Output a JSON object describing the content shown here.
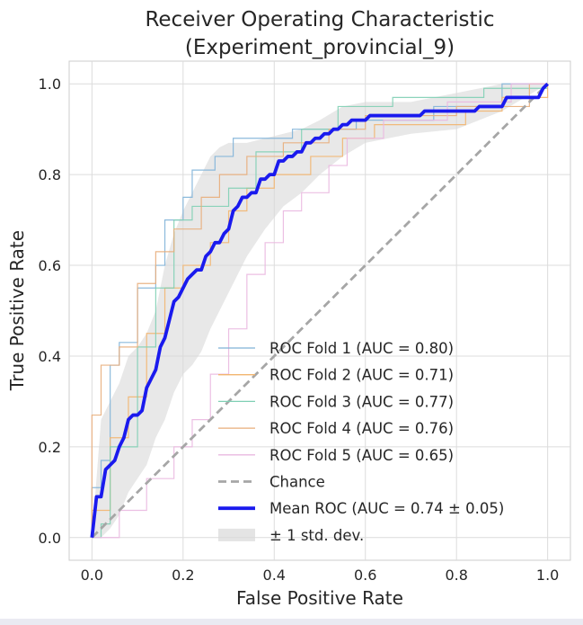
{
  "chart_data": {
    "type": "line",
    "title": [
      "Receiver Operating Characteristic",
      "(Experiment_provincial_9)"
    ],
    "xlabel": "False Positive Rate",
    "ylabel": "True Positive Rate",
    "xlim": [
      -0.05,
      1.05
    ],
    "ylim": [
      -0.05,
      1.05
    ],
    "xticks": [
      0.0,
      0.2,
      0.4,
      0.6,
      0.8,
      1.0
    ],
    "yticks": [
      0.0,
      0.2,
      0.4,
      0.6,
      0.8,
      1.0
    ],
    "xtick_labels": [
      "0.0",
      "0.2",
      "0.4",
      "0.6",
      "0.8",
      "1.0"
    ],
    "ytick_labels": [
      "0.0",
      "0.2",
      "0.4",
      "0.6",
      "0.8",
      "1.0"
    ],
    "grid": true,
    "legend_position": "bottom-right",
    "series": [
      {
        "name": "ROC Fold 1 (AUC = 0.80)",
        "color": "#7fb2d8",
        "points": [
          [
            0,
            0
          ],
          [
            0,
            0.11
          ],
          [
            0.02,
            0.11
          ],
          [
            0.02,
            0.17
          ],
          [
            0.04,
            0.17
          ],
          [
            0.04,
            0.38
          ],
          [
            0.06,
            0.38
          ],
          [
            0.06,
            0.43
          ],
          [
            0.1,
            0.43
          ],
          [
            0.1,
            0.55
          ],
          [
            0.14,
            0.55
          ],
          [
            0.14,
            0.6
          ],
          [
            0.16,
            0.6
          ],
          [
            0.16,
            0.7
          ],
          [
            0.2,
            0.7
          ],
          [
            0.2,
            0.75
          ],
          [
            0.22,
            0.75
          ],
          [
            0.22,
            0.81
          ],
          [
            0.27,
            0.81
          ],
          [
            0.27,
            0.84
          ],
          [
            0.31,
            0.84
          ],
          [
            0.31,
            0.88
          ],
          [
            0.44,
            0.88
          ],
          [
            0.44,
            0.9
          ],
          [
            0.58,
            0.9
          ],
          [
            0.58,
            0.92
          ],
          [
            0.75,
            0.92
          ],
          [
            0.75,
            0.95
          ],
          [
            0.9,
            0.95
          ],
          [
            0.9,
            1.0
          ],
          [
            1.0,
            1.0
          ]
        ]
      },
      {
        "name": "ROC Fold 2 (AUC = 0.71)",
        "color": "#f2b56f",
        "points": [
          [
            0,
            0
          ],
          [
            0,
            0.06
          ],
          [
            0.04,
            0.06
          ],
          [
            0.04,
            0.22
          ],
          [
            0.08,
            0.22
          ],
          [
            0.08,
            0.31
          ],
          [
            0.12,
            0.31
          ],
          [
            0.12,
            0.45
          ],
          [
            0.16,
            0.45
          ],
          [
            0.16,
            0.55
          ],
          [
            0.2,
            0.55
          ],
          [
            0.2,
            0.6
          ],
          [
            0.26,
            0.6
          ],
          [
            0.26,
            0.65
          ],
          [
            0.3,
            0.65
          ],
          [
            0.3,
            0.72
          ],
          [
            0.34,
            0.72
          ],
          [
            0.34,
            0.77
          ],
          [
            0.4,
            0.77
          ],
          [
            0.4,
            0.8
          ],
          [
            0.48,
            0.8
          ],
          [
            0.48,
            0.84
          ],
          [
            0.55,
            0.84
          ],
          [
            0.55,
            0.88
          ],
          [
            0.62,
            0.88
          ],
          [
            0.62,
            0.91
          ],
          [
            0.82,
            0.91
          ],
          [
            0.82,
            0.94
          ],
          [
            0.9,
            0.94
          ],
          [
            0.9,
            0.97
          ],
          [
            1.0,
            0.97
          ],
          [
            1.0,
            1.0
          ]
        ]
      },
      {
        "name": "ROC Fold 3 (AUC = 0.77)",
        "color": "#7fcfb4",
        "points": [
          [
            0,
            0
          ],
          [
            0.02,
            0
          ],
          [
            0.02,
            0.03
          ],
          [
            0.04,
            0.03
          ],
          [
            0.04,
            0.2
          ],
          [
            0.1,
            0.2
          ],
          [
            0.1,
            0.42
          ],
          [
            0.14,
            0.42
          ],
          [
            0.14,
            0.55
          ],
          [
            0.18,
            0.55
          ],
          [
            0.18,
            0.7
          ],
          [
            0.22,
            0.7
          ],
          [
            0.22,
            0.73
          ],
          [
            0.3,
            0.73
          ],
          [
            0.3,
            0.77
          ],
          [
            0.36,
            0.77
          ],
          [
            0.36,
            0.85
          ],
          [
            0.46,
            0.85
          ],
          [
            0.46,
            0.9
          ],
          [
            0.54,
            0.9
          ],
          [
            0.54,
            0.95
          ],
          [
            0.66,
            0.95
          ],
          [
            0.66,
            0.97
          ],
          [
            0.86,
            0.97
          ],
          [
            0.86,
            0.99
          ],
          [
            1.0,
            0.99
          ]
        ]
      },
      {
        "name": "ROC Fold 4 (AUC = 0.76)",
        "color": "#e8ad7a",
        "points": [
          [
            0,
            0
          ],
          [
            0,
            0.27
          ],
          [
            0.02,
            0.27
          ],
          [
            0.02,
            0.38
          ],
          [
            0.06,
            0.38
          ],
          [
            0.06,
            0.42
          ],
          [
            0.1,
            0.42
          ],
          [
            0.1,
            0.56
          ],
          [
            0.14,
            0.56
          ],
          [
            0.14,
            0.63
          ],
          [
            0.18,
            0.63
          ],
          [
            0.18,
            0.68
          ],
          [
            0.24,
            0.68
          ],
          [
            0.24,
            0.75
          ],
          [
            0.28,
            0.75
          ],
          [
            0.28,
            0.8
          ],
          [
            0.34,
            0.8
          ],
          [
            0.34,
            0.84
          ],
          [
            0.42,
            0.84
          ],
          [
            0.42,
            0.87
          ],
          [
            0.52,
            0.87
          ],
          [
            0.52,
            0.9
          ],
          [
            0.6,
            0.9
          ],
          [
            0.6,
            0.93
          ],
          [
            0.8,
            0.93
          ],
          [
            0.8,
            0.95
          ],
          [
            0.96,
            0.95
          ],
          [
            0.96,
            1.0
          ],
          [
            1.0,
            1.0
          ]
        ]
      },
      {
        "name": "ROC Fold 5 (AUC = 0.65)",
        "color": "#eab8e0",
        "points": [
          [
            0,
            0
          ],
          [
            0.06,
            0
          ],
          [
            0.06,
            0.06
          ],
          [
            0.12,
            0.06
          ],
          [
            0.12,
            0.13
          ],
          [
            0.18,
            0.13
          ],
          [
            0.18,
            0.2
          ],
          [
            0.22,
            0.2
          ],
          [
            0.22,
            0.26
          ],
          [
            0.26,
            0.26
          ],
          [
            0.26,
            0.36
          ],
          [
            0.3,
            0.36
          ],
          [
            0.3,
            0.46
          ],
          [
            0.34,
            0.46
          ],
          [
            0.34,
            0.58
          ],
          [
            0.38,
            0.58
          ],
          [
            0.38,
            0.65
          ],
          [
            0.42,
            0.65
          ],
          [
            0.42,
            0.72
          ],
          [
            0.46,
            0.72
          ],
          [
            0.46,
            0.76
          ],
          [
            0.52,
            0.76
          ],
          [
            0.52,
            0.82
          ],
          [
            0.56,
            0.82
          ],
          [
            0.56,
            0.88
          ],
          [
            0.64,
            0.88
          ],
          [
            0.64,
            0.92
          ],
          [
            0.78,
            0.92
          ],
          [
            0.78,
            0.96
          ],
          [
            0.92,
            0.96
          ],
          [
            0.92,
            1.0
          ],
          [
            1.0,
            1.0
          ]
        ]
      },
      {
        "name": "Chance",
        "color": "#a6a6a6",
        "dashed": true,
        "points": [
          [
            0,
            0
          ],
          [
            1,
            1
          ]
        ]
      },
      {
        "name": "Mean ROC (AUC = 0.74 ± 0.05)",
        "color": "#1a1aee",
        "points": [
          [
            0,
            0
          ],
          [
            0.01,
            0.09
          ],
          [
            0.02,
            0.09
          ],
          [
            0.025,
            0.12
          ],
          [
            0.03,
            0.15
          ],
          [
            0.04,
            0.16
          ],
          [
            0.05,
            0.17
          ],
          [
            0.06,
            0.2
          ],
          [
            0.07,
            0.22
          ],
          [
            0.08,
            0.26
          ],
          [
            0.09,
            0.27
          ],
          [
            0.1,
            0.27
          ],
          [
            0.11,
            0.28
          ],
          [
            0.12,
            0.33
          ],
          [
            0.13,
            0.35
          ],
          [
            0.14,
            0.37
          ],
          [
            0.15,
            0.42
          ],
          [
            0.16,
            0.44
          ],
          [
            0.17,
            0.48
          ],
          [
            0.18,
            0.52
          ],
          [
            0.19,
            0.53
          ],
          [
            0.2,
            0.55
          ],
          [
            0.21,
            0.57
          ],
          [
            0.22,
            0.58
          ],
          [
            0.23,
            0.59
          ],
          [
            0.24,
            0.59
          ],
          [
            0.25,
            0.62
          ],
          [
            0.26,
            0.63
          ],
          [
            0.27,
            0.65
          ],
          [
            0.28,
            0.65
          ],
          [
            0.29,
            0.67
          ],
          [
            0.3,
            0.68
          ],
          [
            0.31,
            0.72
          ],
          [
            0.32,
            0.73
          ],
          [
            0.33,
            0.75
          ],
          [
            0.34,
            0.75
          ],
          [
            0.35,
            0.76
          ],
          [
            0.36,
            0.76
          ],
          [
            0.37,
            0.79
          ],
          [
            0.38,
            0.79
          ],
          [
            0.39,
            0.8
          ],
          [
            0.4,
            0.8
          ],
          [
            0.41,
            0.83
          ],
          [
            0.42,
            0.83
          ],
          [
            0.43,
            0.84
          ],
          [
            0.44,
            0.84
          ],
          [
            0.45,
            0.85
          ],
          [
            0.46,
            0.85
          ],
          [
            0.47,
            0.87
          ],
          [
            0.48,
            0.87
          ],
          [
            0.49,
            0.88
          ],
          [
            0.5,
            0.88
          ],
          [
            0.51,
            0.89
          ],
          [
            0.52,
            0.89
          ],
          [
            0.53,
            0.9
          ],
          [
            0.54,
            0.9
          ],
          [
            0.55,
            0.91
          ],
          [
            0.56,
            0.91
          ],
          [
            0.57,
            0.92
          ],
          [
            0.6,
            0.92
          ],
          [
            0.61,
            0.93
          ],
          [
            0.72,
            0.93
          ],
          [
            0.73,
            0.94
          ],
          [
            0.84,
            0.94
          ],
          [
            0.85,
            0.95
          ],
          [
            0.9,
            0.95
          ],
          [
            0.91,
            0.97
          ],
          [
            0.98,
            0.97
          ],
          [
            0.99,
            0.99
          ],
          [
            1.0,
            1.0
          ]
        ]
      }
    ],
    "band": {
      "name": "± 1 std. dev.",
      "color": "#d9d9d9",
      "x": [
        0.0,
        0.02,
        0.04,
        0.06,
        0.08,
        0.1,
        0.12,
        0.14,
        0.16,
        0.18,
        0.2,
        0.22,
        0.24,
        0.26,
        0.28,
        0.3,
        0.34,
        0.38,
        0.42,
        0.46,
        0.5,
        0.55,
        0.6,
        0.7,
        0.8,
        0.9,
        1.0
      ],
      "upper": [
        0.0,
        0.26,
        0.3,
        0.34,
        0.4,
        0.42,
        0.45,
        0.5,
        0.6,
        0.67,
        0.72,
        0.76,
        0.8,
        0.84,
        0.86,
        0.87,
        0.87,
        0.88,
        0.89,
        0.9,
        0.92,
        0.95,
        0.96,
        0.96,
        0.98,
        1.0,
        1.0
      ],
      "lower": [
        0.0,
        0.0,
        0.02,
        0.05,
        0.1,
        0.13,
        0.16,
        0.22,
        0.26,
        0.32,
        0.36,
        0.38,
        0.41,
        0.46,
        0.5,
        0.54,
        0.62,
        0.68,
        0.73,
        0.76,
        0.8,
        0.84,
        0.87,
        0.89,
        0.9,
        0.94,
        1.0
      ]
    },
    "legend": [
      "ROC Fold 1 (AUC = 0.80)",
      "ROC Fold 2 (AUC = 0.71)",
      "ROC Fold 3 (AUC = 0.77)",
      "ROC Fold 4 (AUC = 0.76)",
      "ROC Fold 5 (AUC = 0.65)",
      "Chance",
      "Mean ROC (AUC = 0.74 ± 0.05)",
      "± 1 std. dev."
    ]
  }
}
